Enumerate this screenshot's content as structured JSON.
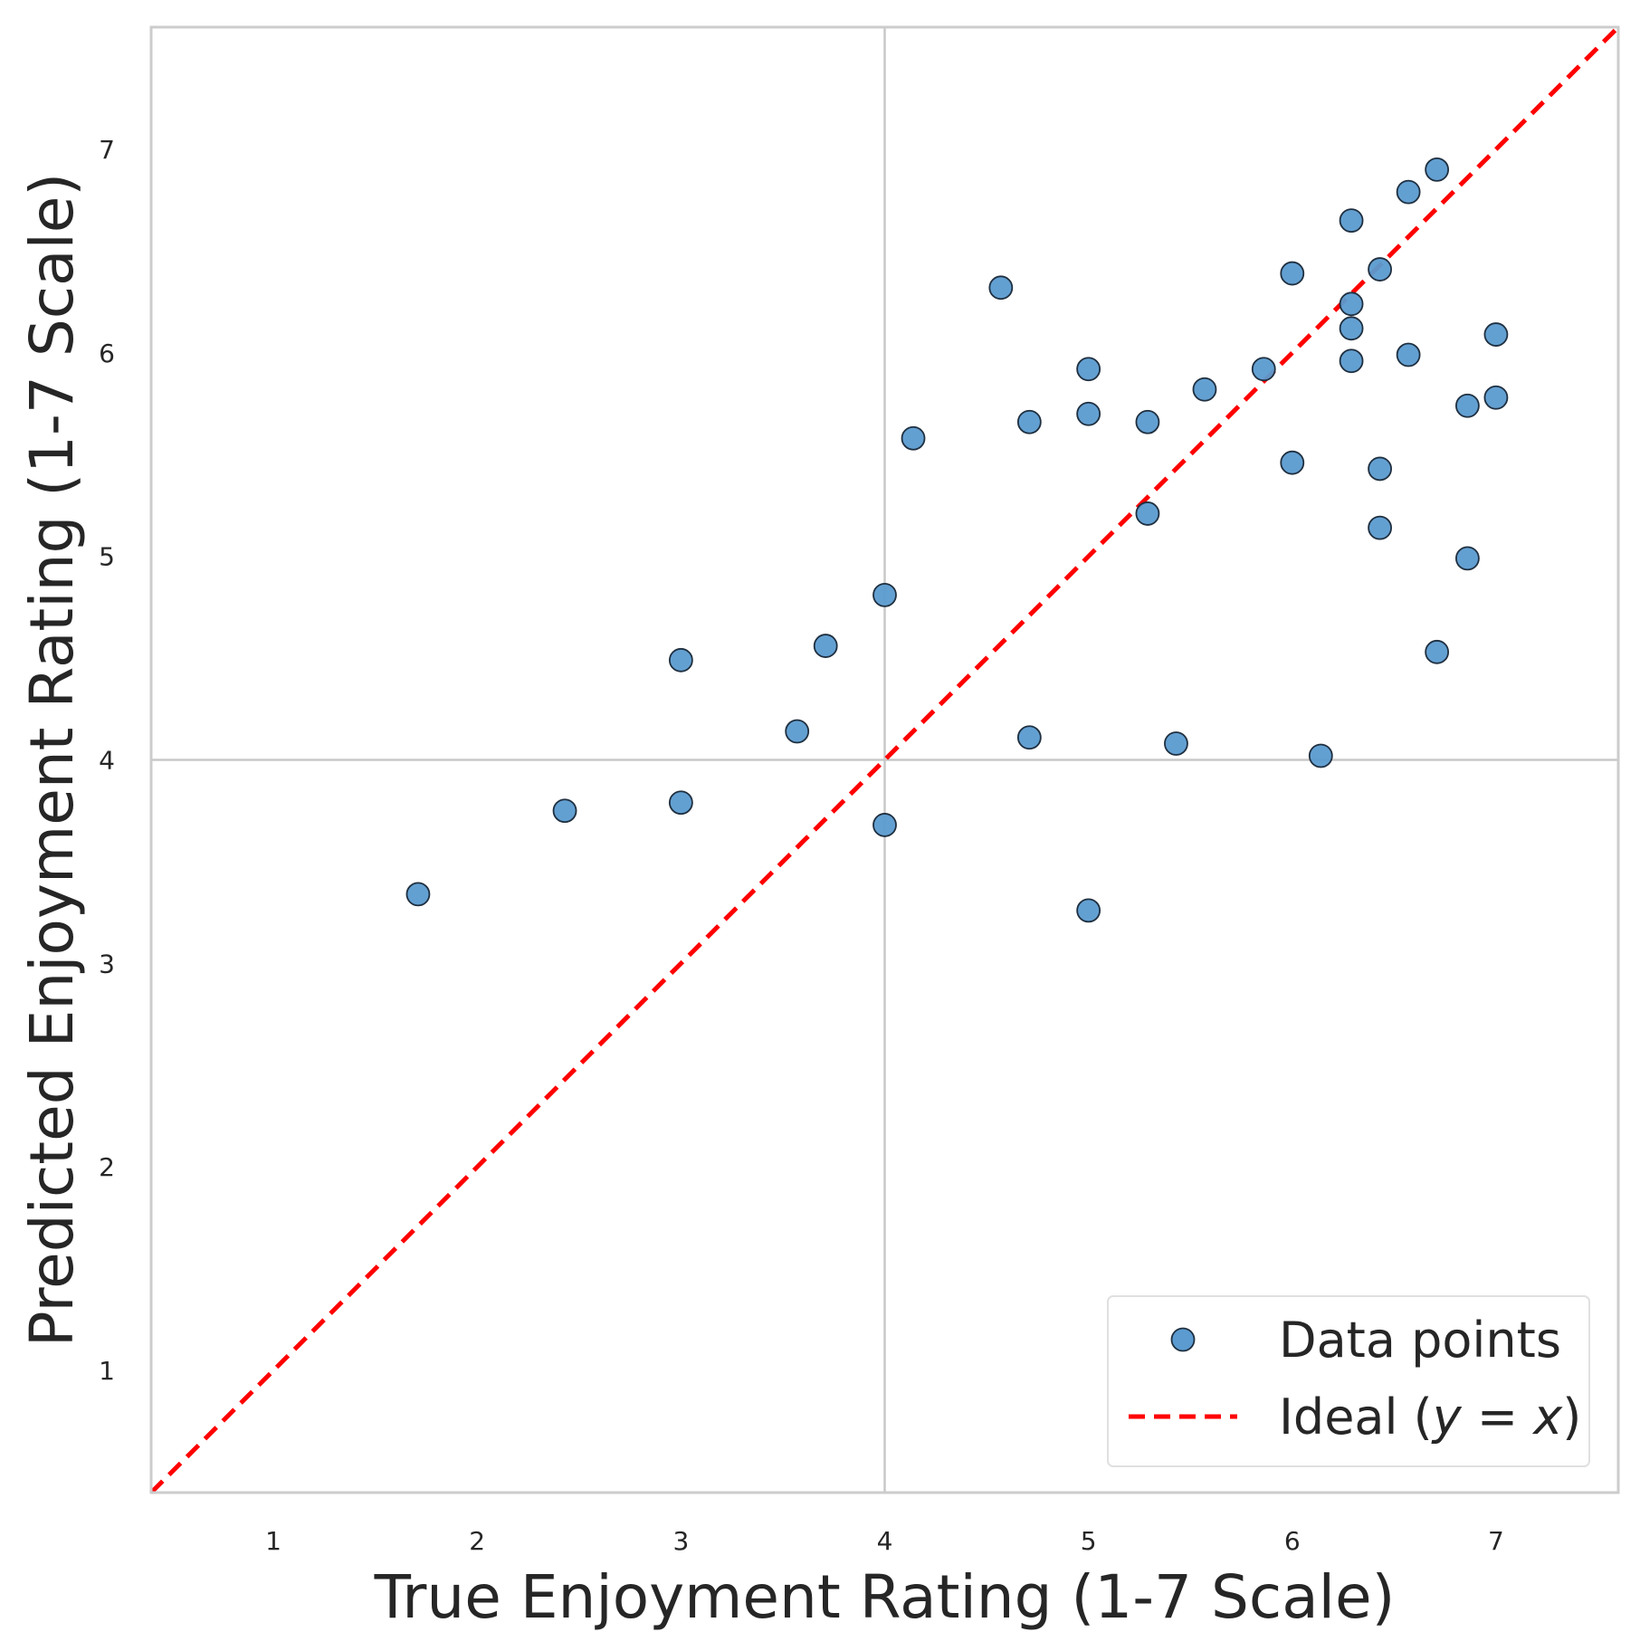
{
  "chart_data": {
    "type": "scatter",
    "xlabel": "True Enjoyment Rating (1-7 Scale)",
    "ylabel": "Predicted Enjoyment Rating (1-7 Scale)",
    "xlim": [
      0.4,
      7.6
    ],
    "ylim": [
      0.4,
      7.6
    ],
    "xticks": [
      "1",
      "2",
      "3",
      "4",
      "5",
      "6",
      "7"
    ],
    "yticks": [
      "1",
      "2",
      "3",
      "4",
      "5",
      "6",
      "7"
    ],
    "grid": "center lines only (x = 4 and y = 4)",
    "legend_position": "lower-right",
    "series": [
      {
        "name": "Data points",
        "color": "#5b9bd0",
        "edge_color": "#1f2f3f",
        "points": [
          [
            1.71,
            3.34
          ],
          [
            2.43,
            3.75
          ],
          [
            3.0,
            3.79
          ],
          [
            3.0,
            4.49
          ],
          [
            3.57,
            4.14
          ],
          [
            3.71,
            4.56
          ],
          [
            4.0,
            4.81
          ],
          [
            4.0,
            3.68
          ],
          [
            4.14,
            5.58
          ],
          [
            4.57,
            6.32
          ],
          [
            4.71,
            5.66
          ],
          [
            4.71,
            4.11
          ],
          [
            5.0,
            5.92
          ],
          [
            5.0,
            5.7
          ],
          [
            5.0,
            3.26
          ],
          [
            5.29,
            5.66
          ],
          [
            5.29,
            5.21
          ],
          [
            5.43,
            4.08
          ],
          [
            5.57,
            5.82
          ],
          [
            5.86,
            5.92
          ],
          [
            6.0,
            6.39
          ],
          [
            6.0,
            5.46
          ],
          [
            6.14,
            4.02
          ],
          [
            6.29,
            6.65
          ],
          [
            6.29,
            6.24
          ],
          [
            6.29,
            6.12
          ],
          [
            6.29,
            5.96
          ],
          [
            6.43,
            6.41
          ],
          [
            6.43,
            5.43
          ],
          [
            6.43,
            5.14
          ],
          [
            6.57,
            6.79
          ],
          [
            6.57,
            5.99
          ],
          [
            6.71,
            6.9
          ],
          [
            6.71,
            4.53
          ],
          [
            6.86,
            5.74
          ],
          [
            6.86,
            4.99
          ],
          [
            7.0,
            6.09
          ],
          [
            7.0,
            5.78
          ]
        ]
      },
      {
        "name": "Ideal (y = x)",
        "type": "line",
        "style": "dashed",
        "color": "#ff0000",
        "x": [
          0.4,
          7.6
        ],
        "y": [
          0.4,
          7.6
        ]
      }
    ]
  },
  "legend": {
    "data_points_label": "Data points",
    "ideal_label_prefix": "Ideal (",
    "ideal_label_math": "y = x",
    "ideal_label_suffix": ")"
  }
}
